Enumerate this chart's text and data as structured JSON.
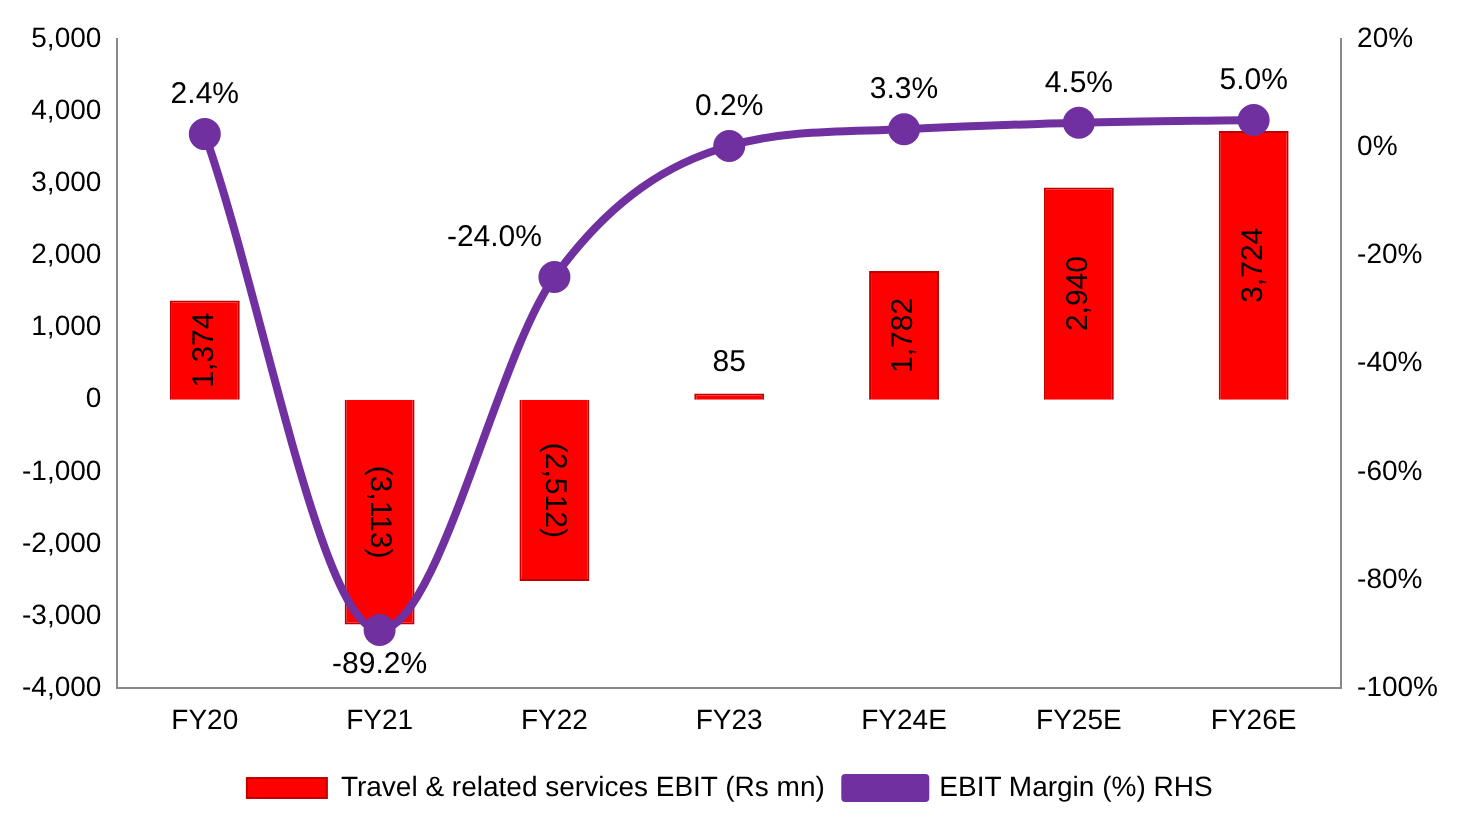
{
  "chart_data": {
    "type": "bar",
    "categories": [
      "FY20",
      "FY21",
      "FY22",
      "FY23",
      "FY24E",
      "FY25E",
      "FY26E"
    ],
    "series": [
      {
        "name": "Travel & related services EBIT (Rs mn)",
        "color": "#ff0000",
        "values": [
          1374,
          -3113,
          -2512,
          85,
          1782,
          2940,
          3724
        ],
        "value_labels": [
          "1,374",
          "(3,113)",
          "(2,512)",
          "85",
          "1,782",
          "2,940",
          "3,724"
        ]
      },
      {
        "name": "EBIT Margin (%) RHS",
        "type": "line",
        "axis": "y2",
        "color": "#7030a0",
        "values": [
          2.4,
          -89.2,
          -24.0,
          0.2,
          3.3,
          4.5,
          5.0
        ],
        "value_labels": [
          "2.4%",
          "-89.2%",
          "-24.0%",
          "0.2%",
          "3.3%",
          "4.5%",
          "5.0%"
        ]
      }
    ],
    "ylim": [
      -4000,
      5000
    ],
    "yticks": [
      {
        "value": -4000,
        "label": "-4,000"
      },
      {
        "value": -3000,
        "label": "-3,000"
      },
      {
        "value": -2000,
        "label": "-2,000"
      },
      {
        "value": -1000,
        "label": "-1,000"
      },
      0,
      {
        "value": 1000,
        "label": "1,000"
      },
      {
        "value": 2000,
        "label": "2,000"
      },
      {
        "value": 3000,
        "label": "3,000"
      },
      {
        "value": 4000,
        "label": "4,000"
      },
      {
        "value": 5000,
        "label": "5,000"
      }
    ],
    "y2lim": [
      -100,
      20
    ],
    "y2ticks": [
      {
        "value": -100,
        "label": "-100%"
      },
      {
        "value": -80,
        "label": "-80%"
      },
      {
        "value": -60,
        "label": "-60%"
      },
      {
        "value": -40,
        "label": "-40%"
      },
      {
        "value": -20,
        "label": "-20%"
      },
      {
        "value": 0,
        "label": "0%"
      },
      {
        "value": 20,
        "label": "20%"
      }
    ],
    "marker": "circle",
    "legend": "bottom",
    "grid": false
  }
}
